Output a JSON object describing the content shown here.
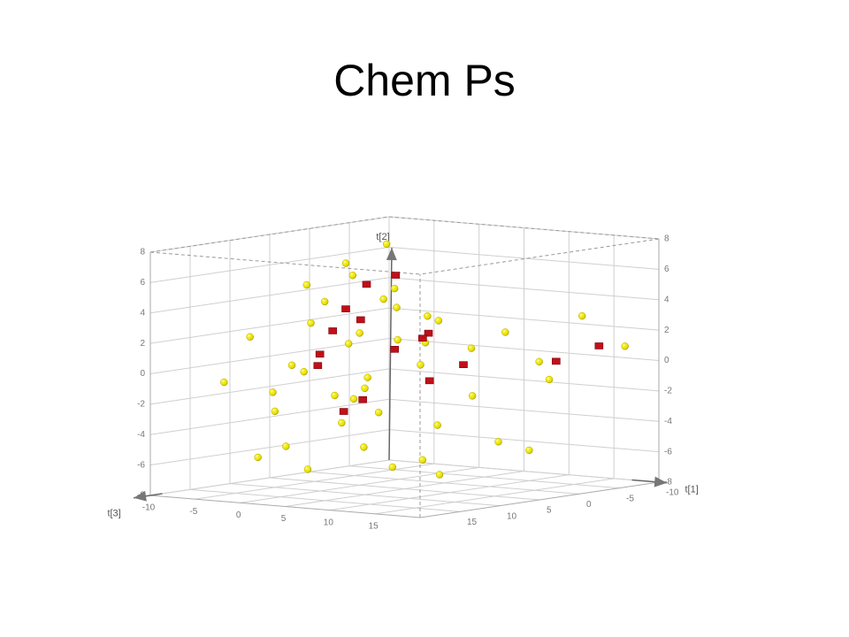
{
  "chart_data": {
    "type": "scatter3d",
    "title": "Chem Ps",
    "xlabel": "t[1]",
    "ylabel": "t[2]",
    "zlabel": "t[3]",
    "xlim": [
      -10,
      20
    ],
    "xticks": [
      -10,
      -5,
      0,
      5,
      10,
      15
    ],
    "ylim": [
      -8,
      8
    ],
    "yticks": [
      -8,
      -6,
      -4,
      -2,
      0,
      2,
      4,
      6,
      8
    ],
    "zlim": [
      -10,
      20
    ],
    "zticks": [
      -10,
      -5,
      0,
      5,
      10,
      15
    ],
    "grid": true,
    "series": [
      {
        "color": "#f2ea00",
        "marker": "sphere",
        "x": [
          0,
          -3,
          2,
          5,
          -5,
          3,
          8,
          -2,
          1,
          6,
          -4,
          4,
          10,
          -6,
          0,
          7,
          -1,
          3,
          12,
          -3,
          2,
          9,
          -7,
          5,
          1,
          15,
          -2,
          6,
          0,
          4,
          -5,
          11,
          2,
          -8,
          7,
          3,
          14,
          -1,
          8,
          0,
          18,
          -4,
          5,
          10,
          -6
        ],
        "y": [
          2,
          4,
          -2,
          0,
          -3,
          5,
          1,
          -5,
          6,
          -4,
          0,
          3,
          2,
          -6,
          -1,
          -6,
          3,
          -3,
          0,
          1,
          7,
          -2,
          -2,
          4,
          -7,
          3,
          -4,
          2,
          0,
          -5,
          5,
          -5,
          1,
          -1,
          3,
          8,
          -1,
          -2,
          -7,
          4,
          1,
          -7,
          -1,
          -6,
          2
        ],
        "z": [
          5,
          6,
          8,
          3,
          10,
          4,
          0,
          12,
          7,
          2,
          9,
          1,
          -2,
          11,
          4,
          5,
          10,
          6,
          -4,
          3,
          9,
          1,
          8,
          6,
          2,
          -6,
          5,
          7,
          12,
          9,
          6,
          0,
          -1,
          13,
          3,
          5,
          -3,
          7,
          4,
          2,
          -8,
          7,
          10,
          -5,
          12
        ]
      },
      {
        "color": "#c0101a",
        "marker": "cube",
        "x": [
          1,
          3,
          -2,
          4,
          6,
          0,
          -3,
          8,
          2,
          13,
          5,
          -1,
          3,
          7,
          0,
          16
        ],
        "y": [
          3,
          1,
          0,
          6,
          -1,
          -3,
          2,
          0,
          4,
          0,
          2,
          5,
          -2,
          2,
          1,
          1
        ],
        "z": [
          6,
          4,
          8,
          5,
          3,
          7,
          5,
          1,
          9,
          -5,
          2,
          3,
          8,
          5,
          10,
          -7
        ]
      }
    ]
  }
}
